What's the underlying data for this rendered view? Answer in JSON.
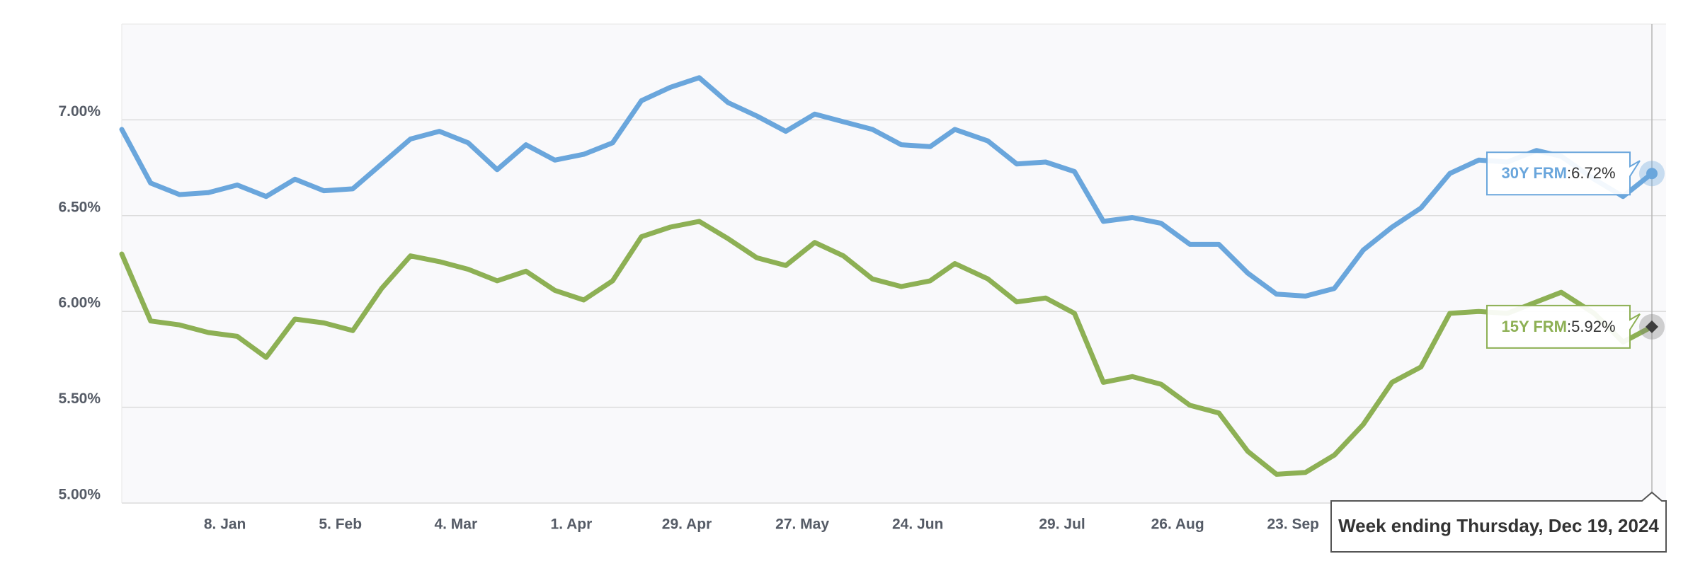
{
  "chart_data": {
    "type": "line",
    "x": [
      "2023-12-14",
      "2023-12-21",
      "2023-12-28",
      "2024-01-04",
      "2024-01-11",
      "2024-01-18",
      "2024-01-25",
      "2024-02-01",
      "2024-02-08",
      "2024-02-15",
      "2024-02-22",
      "2024-02-29",
      "2024-03-07",
      "2024-03-14",
      "2024-03-21",
      "2024-03-28",
      "2024-04-04",
      "2024-04-11",
      "2024-04-18",
      "2024-04-25",
      "2024-05-02",
      "2024-05-09",
      "2024-05-16",
      "2024-05-23",
      "2024-05-30",
      "2024-06-06",
      "2024-06-13",
      "2024-06-20",
      "2024-06-27",
      "2024-07-03",
      "2024-07-11",
      "2024-07-18",
      "2024-07-25",
      "2024-08-01",
      "2024-08-08",
      "2024-08-15",
      "2024-08-22",
      "2024-08-29",
      "2024-09-05",
      "2024-09-12",
      "2024-09-19",
      "2024-09-26",
      "2024-10-03",
      "2024-10-10",
      "2024-10-17",
      "2024-10-24",
      "2024-10-31",
      "2024-11-07",
      "2024-11-14",
      "2024-11-21",
      "2024-11-27",
      "2024-12-05",
      "2024-12-12",
      "2024-12-19"
    ],
    "series": [
      {
        "name": "30Y FRM",
        "color": "#6aa6dc",
        "values": [
          6.95,
          6.67,
          6.61,
          6.62,
          6.66,
          6.6,
          6.69,
          6.63,
          6.64,
          6.77,
          6.9,
          6.94,
          6.88,
          6.74,
          6.87,
          6.79,
          6.82,
          6.88,
          7.1,
          7.17,
          7.22,
          7.09,
          7.02,
          6.94,
          7.03,
          6.99,
          6.95,
          6.87,
          6.86,
          6.95,
          6.89,
          6.77,
          6.78,
          6.73,
          6.47,
          6.49,
          6.46,
          6.35,
          6.35,
          6.2,
          6.09,
          6.08,
          6.12,
          6.32,
          6.44,
          6.54,
          6.72,
          6.79,
          6.78,
          6.84,
          6.81,
          6.69,
          6.6,
          6.72
        ]
      },
      {
        "name": "15Y FRM",
        "color": "#8db054",
        "values": [
          6.3,
          5.95,
          5.93,
          5.89,
          5.87,
          5.76,
          5.96,
          5.94,
          5.9,
          6.12,
          6.29,
          6.26,
          6.22,
          6.16,
          6.21,
          6.11,
          6.06,
          6.16,
          6.39,
          6.44,
          6.47,
          6.38,
          6.28,
          6.24,
          6.36,
          6.29,
          6.17,
          6.13,
          6.16,
          6.25,
          6.17,
          6.05,
          6.07,
          5.99,
          5.63,
          5.66,
          5.62,
          5.51,
          5.47,
          5.27,
          5.15,
          5.16,
          5.25,
          5.41,
          5.63,
          5.71,
          5.99,
          6.0,
          5.99,
          6.05,
          6.1,
          5.99,
          5.84,
          5.92
        ]
      }
    ],
    "xlim": [
      "2023-12-14",
      "2024-12-19"
    ],
    "xticks": [
      {
        "value": "2024-01-08",
        "label": "8. Jan"
      },
      {
        "value": "2024-02-05",
        "label": "5. Feb"
      },
      {
        "value": "2024-03-04",
        "label": "4. Mar"
      },
      {
        "value": "2024-04-01",
        "label": "1. Apr"
      },
      {
        "value": "2024-04-29",
        "label": "29. Apr"
      },
      {
        "value": "2024-05-27",
        "label": "27. May"
      },
      {
        "value": "2024-06-24",
        "label": "24. Jun"
      },
      {
        "value": "2024-07-29",
        "label": "29. Jul"
      },
      {
        "value": "2024-08-26",
        "label": "26. Aug"
      },
      {
        "value": "2024-09-23",
        "label": "23. Sep"
      }
    ],
    "ylim": [
      5.0,
      7.5
    ],
    "yticks": [
      {
        "value": 5.0,
        "label": "5.00%"
      },
      {
        "value": 5.5,
        "label": "5.50%"
      },
      {
        "value": 6.0,
        "label": "6.00%"
      },
      {
        "value": 6.5,
        "label": "6.50%"
      },
      {
        "value": 7.0,
        "label": "7.00%"
      }
    ],
    "grid": true,
    "tooltip": {
      "title": "Week ending Thursday, Dec 19, 2024",
      "labels": [
        "6.72%",
        "5.92%"
      ]
    }
  }
}
